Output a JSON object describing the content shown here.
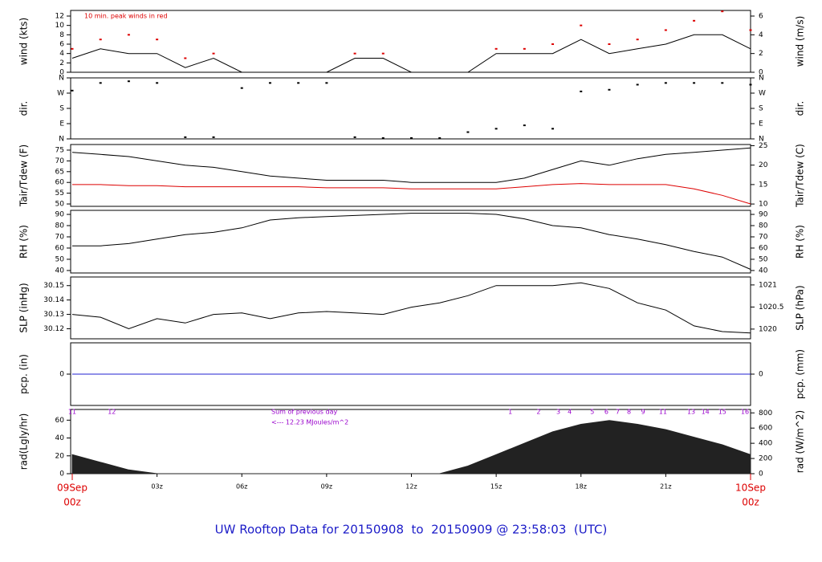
{
  "chart_data": [
    {
      "type": "line",
      "ylabel": "wind (kts)",
      "y2label": "wind (m/s)",
      "annotations": [
        "10 min. peak winds in red"
      ],
      "ylim": [
        0,
        13.2
      ],
      "yticks": [
        0,
        2,
        4,
        6,
        8,
        10,
        12
      ],
      "y2lim": [
        0,
        6.6
      ],
      "y2ticks": [
        0,
        2,
        4,
        6
      ],
      "x": [
        0,
        1,
        2,
        3,
        4,
        5,
        6,
        7,
        8,
        9,
        10,
        11,
        12,
        13,
        14,
        15,
        16,
        17,
        18,
        19,
        20,
        21,
        22,
        23,
        24
      ],
      "series": [
        {
          "style": "line",
          "color": "#000000",
          "values": [
            3,
            5,
            4,
            4,
            1,
            3,
            0,
            0,
            0,
            0,
            3,
            3,
            0,
            0,
            0,
            4,
            4,
            4,
            7,
            4,
            5,
            6,
            8,
            8,
            5
          ]
        },
        {
          "style": "dots",
          "color": "#dd0000",
          "values": [
            5,
            7,
            8,
            7,
            3,
            4,
            null,
            null,
            null,
            null,
            4,
            4,
            null,
            null,
            null,
            5,
            5,
            6,
            10,
            6,
            7,
            9,
            11,
            13,
            9
          ]
        }
      ]
    },
    {
      "type": "line",
      "ylabel": "dir.",
      "y2label": "dir.",
      "ylim": [
        0,
        360
      ],
      "yticks": [
        {
          "value": 0,
          "label": "N"
        },
        {
          "value": 90,
          "label": "E"
        },
        {
          "value": 180,
          "label": "S"
        },
        {
          "value": 270,
          "label": "W"
        },
        {
          "value": 360,
          "label": "N"
        }
      ],
      "y2lim": [
        0,
        360
      ],
      "y2ticks": [
        {
          "value": 0,
          "label": "N"
        },
        {
          "value": 90,
          "label": "E"
        },
        {
          "value": 180,
          "label": "S"
        },
        {
          "value": 270,
          "label": "W"
        },
        {
          "value": 360,
          "label": "N"
        }
      ],
      "x": [
        0,
        1,
        2,
        3,
        4,
        5,
        6,
        7,
        8,
        9,
        10,
        11,
        12,
        13,
        14,
        15,
        16,
        17,
        18,
        19,
        20,
        21,
        22,
        23,
        24
      ],
      "series": [
        {
          "style": "dots",
          "color": "#000000",
          "values": [
            285,
            330,
            340,
            330,
            10,
            10,
            300,
            330,
            330,
            330,
            10,
            5,
            5,
            5,
            40,
            60,
            80,
            60,
            280,
            290,
            320,
            330,
            330,
            330,
            320
          ]
        }
      ]
    },
    {
      "type": "line",
      "ylabel": "Tair/Tdew (F)",
      "y2label": "Tair/Tdew (C)",
      "ylim": [
        48.9,
        77.6
      ],
      "yticks": [
        50,
        55,
        60,
        65,
        70,
        75
      ],
      "y2lim": [
        9.4,
        25.3
      ],
      "y2ticks": [
        10,
        15,
        20,
        25
      ],
      "x": [
        0,
        1,
        2,
        3,
        4,
        5,
        6,
        7,
        8,
        9,
        10,
        11,
        12,
        13,
        14,
        15,
        16,
        17,
        18,
        19,
        20,
        21,
        22,
        23,
        24
      ],
      "series": [
        {
          "style": "line",
          "color": "#000000",
          "values": [
            74,
            73,
            72,
            70,
            68,
            67,
            65,
            63,
            62,
            61,
            61,
            61,
            60,
            60,
            60,
            60,
            62,
            66,
            70,
            68,
            71,
            73,
            74,
            75,
            76
          ]
        },
        {
          "style": "line",
          "color": "#dd0000",
          "values": [
            59,
            59,
            58.5,
            58.5,
            58,
            58,
            58,
            58,
            58,
            57.5,
            57.5,
            57.5,
            57,
            57,
            57,
            57,
            58,
            59,
            59.5,
            59,
            59,
            59,
            57,
            54,
            50
          ]
        }
      ]
    },
    {
      "type": "line",
      "ylabel": "RH (%)",
      "y2label": "RH (%)",
      "ylim": [
        37.8,
        93.6
      ],
      "yticks": [
        40,
        50,
        60,
        70,
        80,
        90
      ],
      "y2lim": [
        37.8,
        93.6
      ],
      "y2ticks": [
        40,
        50,
        60,
        70,
        80,
        90
      ],
      "x": [
        0,
        1,
        2,
        3,
        4,
        5,
        6,
        7,
        8,
        9,
        10,
        11,
        12,
        13,
        14,
        15,
        16,
        17,
        18,
        19,
        20,
        21,
        22,
        23,
        24
      ],
      "series": [
        {
          "style": "line",
          "color": "#000000",
          "values": [
            62,
            62,
            64,
            68,
            72,
            74,
            78,
            85,
            87,
            88,
            89,
            90,
            91,
            91,
            91,
            90,
            86,
            80,
            78,
            72,
            68,
            63,
            57,
            52,
            41
          ]
        }
      ]
    },
    {
      "type": "line",
      "ylabel": "SLP (inHg)",
      "y2label": "SLP (hPa)",
      "ylim": [
        30.113,
        30.156
      ],
      "yticks": [
        30.12,
        30.13,
        30.14,
        30.15
      ],
      "y2lim": [
        1019.78,
        1021.18
      ],
      "y2ticks": [
        1020,
        1020.5,
        1021
      ],
      "x": [
        0,
        1,
        2,
        3,
        4,
        5,
        6,
        7,
        8,
        9,
        10,
        11,
        12,
        13,
        14,
        15,
        16,
        17,
        18,
        19,
        20,
        21,
        22,
        23,
        24
      ],
      "series": [
        {
          "style": "line",
          "color": "#000000",
          "values": [
            30.13,
            30.128,
            30.12,
            30.127,
            30.124,
            30.13,
            30.131,
            30.127,
            30.131,
            30.132,
            30.131,
            30.13,
            30.135,
            30.138,
            30.143,
            30.15,
            30.15,
            30.15,
            30.152,
            30.148,
            30.138,
            30.133,
            30.122,
            30.118,
            30.117
          ]
        }
      ]
    },
    {
      "type": "line",
      "ylabel": "pcp. (in)",
      "y2label": "pcp. (mm)",
      "ylim": [
        -1,
        1
      ],
      "yticks": [
        0
      ],
      "y2lim": [
        -1,
        1
      ],
      "y2ticks": [
        0
      ],
      "x": [
        0,
        1,
        2,
        3,
        4,
        5,
        6,
        7,
        8,
        9,
        10,
        11,
        12,
        13,
        14,
        15,
        16,
        17,
        18,
        19,
        20,
        21,
        22,
        23,
        24
      ],
      "series": [
        {
          "style": "line",
          "color": "#2020d0",
          "values": [
            0,
            0,
            0,
            0,
            0,
            0,
            0,
            0,
            0,
            0,
            0,
            0,
            0,
            0,
            0,
            0,
            0,
            0,
            0,
            0,
            0,
            0,
            0,
            0,
            0
          ]
        }
      ]
    },
    {
      "type": "line",
      "ylabel": "rad(Lgly/hr)",
      "y2label": "rad (W/m^2)",
      "annotations": [
        "Sum of previous day",
        "<--- 12.23 MJoules/m^2"
      ],
      "ylim": [
        0,
        72
      ],
      "yticks": [
        0,
        20,
        40,
        60
      ],
      "y2lim": [
        0,
        845
      ],
      "y2ticks": [
        0,
        200,
        400,
        600,
        800
      ],
      "markers": {
        "x": [
          0,
          1.4,
          15.5,
          16.5,
          17.2,
          17.6,
          18.4,
          18.9,
          19.3,
          19.7,
          20.2,
          20.9,
          21.9,
          22.4,
          23.0,
          23.8
        ],
        "labels": [
          "11",
          "12",
          "1",
          "2",
          "3",
          "4",
          "5",
          "6",
          "7",
          "8",
          "9",
          "11",
          "13",
          "14",
          "15",
          "16"
        ]
      },
      "x": [
        0,
        1,
        2,
        3,
        4,
        5,
        6,
        7,
        8,
        9,
        10,
        11,
        12,
        13,
        14,
        15,
        16,
        17,
        18,
        19,
        20,
        21,
        22,
        23,
        24
      ],
      "series": [
        {
          "style": "area",
          "axis": "y2",
          "color": "#222222",
          "values": [
            250,
            150,
            50,
            0,
            0,
            0,
            0,
            0,
            0,
            0,
            0,
            0,
            0,
            0,
            100,
            250,
            400,
            550,
            650,
            700,
            650,
            580,
            480,
            380,
            250
          ]
        }
      ]
    }
  ],
  "x_axis": {
    "xlim": [
      0,
      24
    ],
    "xticks": [
      {
        "value": 0,
        "label": "00z"
      },
      {
        "value": 3,
        "label": "03z"
      },
      {
        "value": 6,
        "label": "06z"
      },
      {
        "value": 9,
        "label": "09z"
      },
      {
        "value": 12,
        "label": "12z"
      },
      {
        "value": 15,
        "label": "15z"
      },
      {
        "value": 18,
        "label": "18z"
      },
      {
        "value": 21,
        "label": "21z"
      },
      {
        "value": 24,
        "label": "00z"
      }
    ],
    "date_labels": [
      {
        "value": 0,
        "label": "09Sep"
      },
      {
        "value": 24,
        "label": "10Sep"
      }
    ]
  },
  "footer": "UW Rooftop Data for 20150908  to  20150909 @ 23:58:03  (UTC)"
}
